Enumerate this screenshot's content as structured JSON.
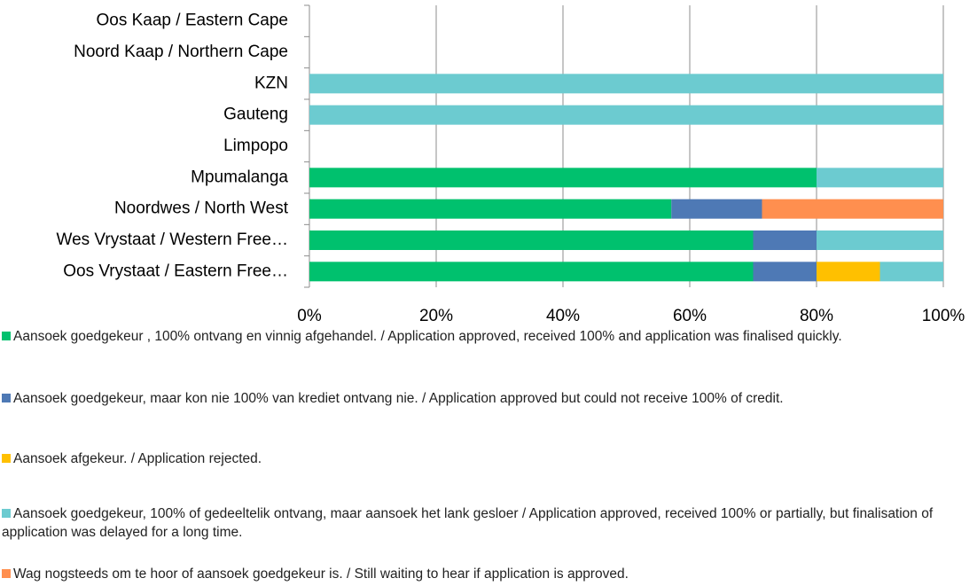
{
  "chart_data": {
    "type": "stacked-bar-horizontal",
    "categories": [
      "Oos Kaap / Eastern Cape",
      "Noord Kaap / Northern Cape",
      "KZN",
      "Gauteng",
      "Limpopo",
      "Mpumalanga",
      "Noordwes / North West",
      "Wes Vrystaat / Western Free…",
      "Oos Vrystaat / Eastern Free…"
    ],
    "series": [
      {
        "name": "Aansoek goedgekeur , 100% ontvang en vinnig afgehandel. /  Application approved, received 100% and application was finalised quickly.",
        "color": "#00c16e",
        "values": [
          0,
          0,
          0,
          0,
          0,
          80,
          57.1,
          70,
          70
        ]
      },
      {
        "name": "Aansoek goedgekeur, maar kon nie 100% van krediet ontvang nie. /  Application approved but could not receive 100% of credit.",
        "color": "#4e79b5",
        "values": [
          0,
          0,
          0,
          0,
          0,
          0,
          14.3,
          10,
          10
        ]
      },
      {
        "name": "Aansoek afgekeur. /  Application rejected.",
        "color": "#ffc000",
        "values": [
          0,
          0,
          0,
          0,
          0,
          0,
          0,
          0,
          10
        ]
      },
      {
        "name": "Aansoek goedgekeur, 100% of gedeeltelik ontvang, maar aansoek het lank gesloer /  Application approved, received 100% or partially, but finalisation of application was delayed for a long time.",
        "color": "#6ccbd0",
        "values": [
          0,
          0,
          100,
          100,
          0,
          20,
          0,
          20,
          10
        ]
      },
      {
        "name": "Wag nogsteeds om te hoor of aansoek goedgekeur is. /  Still waiting to hear if application is approved.",
        "color": "#ff8f4f",
        "values": [
          0,
          0,
          0,
          0,
          0,
          0,
          28.6,
          0,
          0
        ]
      }
    ],
    "xlim": [
      0,
      100
    ],
    "xticks": [
      {
        "value": 0,
        "label": "0%"
      },
      {
        "value": 20,
        "label": "20%"
      },
      {
        "value": 40,
        "label": "40%"
      },
      {
        "value": 60,
        "label": "60%"
      },
      {
        "value": 80,
        "label": "80%"
      },
      {
        "value": 100,
        "label": "100%"
      }
    ],
    "grid": true,
    "legend": "bottom"
  }
}
